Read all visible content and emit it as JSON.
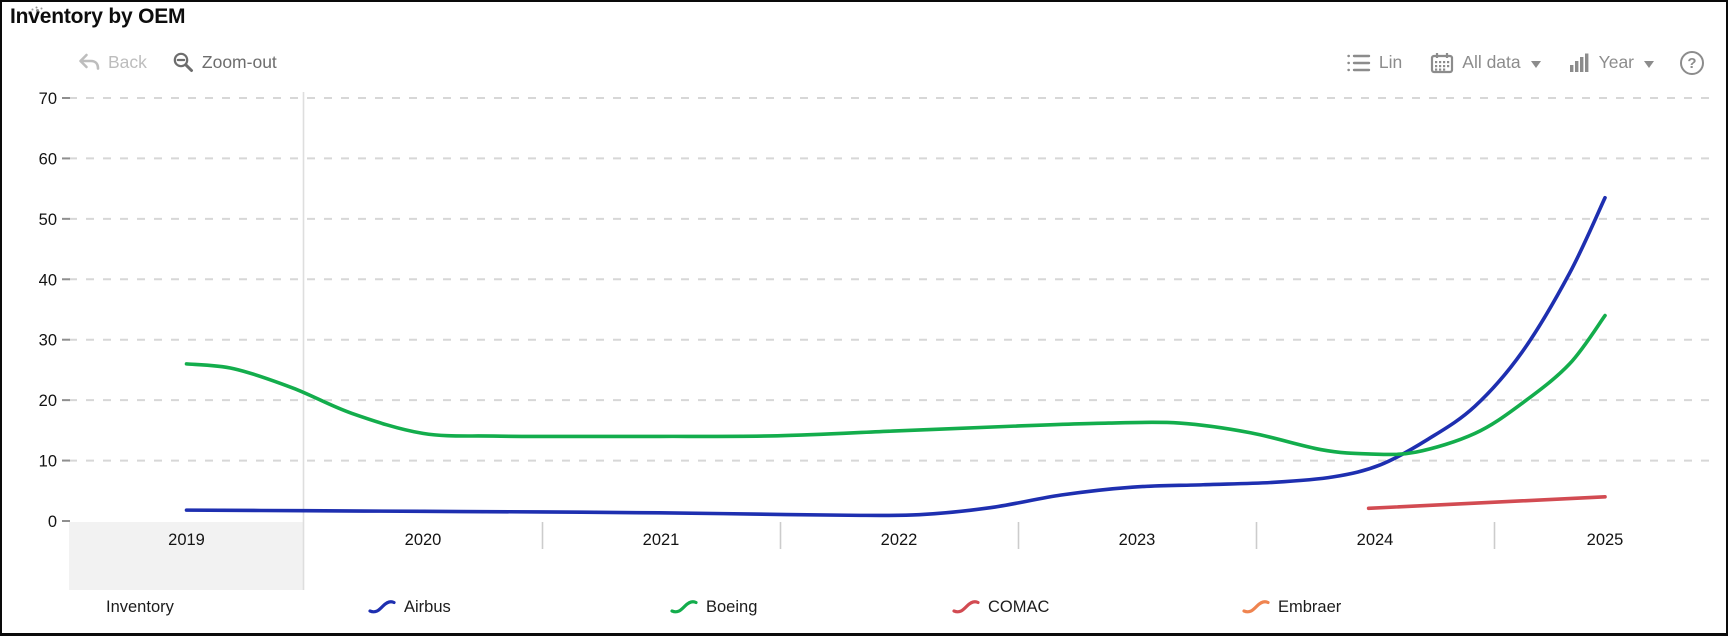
{
  "window": {
    "title": "Inventory by OEM"
  },
  "toolbar": {
    "back_label": "Back",
    "zoom_out_label": "Zoom-out",
    "lin_label": "Lin",
    "all_data_label": "All data",
    "year_label": "Year",
    "help_label": "?"
  },
  "chart_data": {
    "type": "line",
    "title": "Inventory by OEM",
    "xlabel": "",
    "ylabel": "",
    "x_categories": [
      "2019",
      "2020",
      "2021",
      "2022",
      "2023",
      "2024",
      "2025"
    ],
    "y_ticks": [
      0,
      10,
      20,
      30,
      40,
      50,
      60,
      70
    ],
    "ylim": [
      0,
      70
    ],
    "grid": "horizontal-dashed",
    "highlighted_region": "2019",
    "legend_position": "bottom",
    "series": [
      {
        "name": "Airbus",
        "color": "#1e2fb0",
        "points": [
          [
            2019,
            1.8
          ],
          [
            2019.5,
            1.7
          ],
          [
            2020,
            1.6
          ],
          [
            2020.5,
            1.5
          ],
          [
            2021,
            1.35
          ],
          [
            2021.4,
            1.15
          ],
          [
            2021.8,
            0.95
          ],
          [
            2022.1,
            1.05
          ],
          [
            2022.4,
            2.2
          ],
          [
            2022.7,
            4.3
          ],
          [
            2023,
            5.6
          ],
          [
            2023.3,
            6.0
          ],
          [
            2023.6,
            6.4
          ],
          [
            2023.85,
            7.3
          ],
          [
            2024.05,
            9.3
          ],
          [
            2024.25,
            13.5
          ],
          [
            2024.45,
            19
          ],
          [
            2024.65,
            28
          ],
          [
            2024.85,
            41
          ],
          [
            2025,
            53.5
          ]
        ]
      },
      {
        "name": "Boeing",
        "color": "#13ad4c",
        "points": [
          [
            2019,
            26
          ],
          [
            2019.2,
            25.2
          ],
          [
            2019.45,
            22
          ],
          [
            2019.7,
            17.8
          ],
          [
            2020,
            14.5
          ],
          [
            2020.3,
            14.05
          ],
          [
            2020.7,
            14
          ],
          [
            2021,
            14
          ],
          [
            2021.5,
            14.1
          ],
          [
            2022,
            14.9
          ],
          [
            2022.5,
            15.7
          ],
          [
            2022.9,
            16.2
          ],
          [
            2023.2,
            16.2
          ],
          [
            2023.5,
            14.6
          ],
          [
            2023.8,
            11.8
          ],
          [
            2024,
            11.1
          ],
          [
            2024.2,
            11.4
          ],
          [
            2024.45,
            14.5
          ],
          [
            2024.65,
            19.5
          ],
          [
            2024.85,
            26
          ],
          [
            2025,
            34
          ]
        ]
      },
      {
        "name": "COMAC",
        "color": "#d24b52",
        "points": [
          [
            2024,
            2.1
          ],
          [
            2025,
            4.0
          ]
        ]
      },
      {
        "name": "Embraer",
        "color": "#ef8450",
        "points": []
      }
    ],
    "legend_items": [
      {
        "label": "Inventory",
        "color": null
      },
      {
        "label": "Airbus",
        "color": "#1e2fb0"
      },
      {
        "label": "Boeing",
        "color": "#13ad4c"
      },
      {
        "label": "COMAC",
        "color": "#d24b52"
      },
      {
        "label": "Embraer",
        "color": "#ef8450"
      }
    ]
  }
}
